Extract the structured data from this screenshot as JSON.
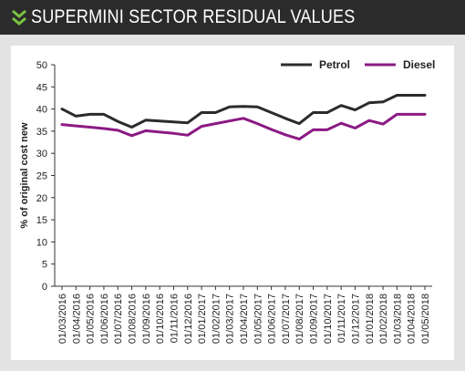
{
  "header": {
    "title": "SUPERMINI SECTOR RESIDUAL VALUES",
    "icon": "double-chevron-down-icon",
    "accent_color": "#7cc242",
    "background_color": "#2b2b2b"
  },
  "chart_data": {
    "type": "line",
    "title": "",
    "xlabel": "",
    "ylabel": "% of original cost new",
    "ylim": [
      0,
      50
    ],
    "yticks": [
      0,
      5,
      10,
      15,
      20,
      25,
      30,
      35,
      40,
      45,
      50
    ],
    "legend_position": "top-right",
    "grid": false,
    "x": [
      "01/03/2016",
      "01/04/2016",
      "01/05/2016",
      "01/06/2016",
      "01/07/2016",
      "01/08/2016",
      "01/09/2016",
      "01/10/2016",
      "01/11/2016",
      "01/12/2016",
      "01/01/2017",
      "01/02/2017",
      "01/03/2017",
      "01/04/2017",
      "01/05/2017",
      "01/06/2017",
      "01/07/2017",
      "01/08/2017",
      "01/09/2017",
      "01/10/2017",
      "01/11/2017",
      "01/12/2017",
      "01/01/2018",
      "01/02/2018",
      "01/03/2018",
      "01/04/2018",
      "01/05/2018"
    ],
    "series": [
      {
        "name": "Petrol",
        "color": "#2b2b2b",
        "values": [
          40.0,
          38.4,
          38.8,
          38.8,
          37.2,
          35.9,
          37.5,
          37.3,
          37.1,
          36.9,
          39.2,
          39.2,
          40.5,
          40.6,
          40.5,
          39.2,
          37.9,
          36.7,
          39.2,
          39.2,
          40.8,
          39.8,
          41.4,
          41.6,
          43.1,
          43.1,
          43.1
        ]
      },
      {
        "name": "Diesel",
        "color": "#8b1a83",
        "values": [
          36.5,
          36.2,
          35.9,
          35.6,
          35.2,
          34.0,
          35.1,
          34.8,
          34.5,
          34.1,
          36.1,
          36.7,
          37.3,
          37.9,
          36.7,
          35.4,
          34.2,
          33.2,
          35.3,
          35.3,
          36.8,
          35.7,
          37.4,
          36.6,
          38.8,
          38.8,
          38.8
        ]
      }
    ]
  }
}
